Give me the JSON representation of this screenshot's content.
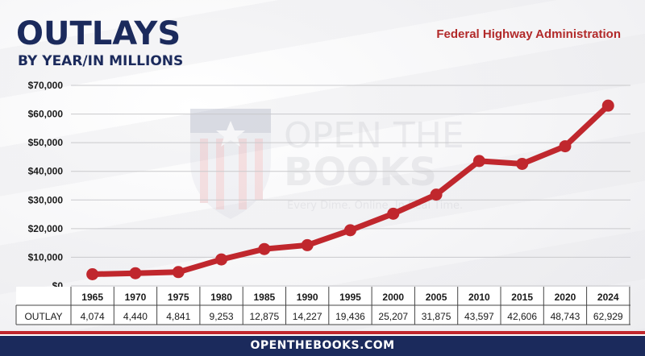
{
  "header": {
    "title": "OUTLAYS",
    "subtitle": "BY YEAR/IN MILLIONS",
    "agency": "Federal Highway Administration"
  },
  "watermark": {
    "line1": "OPEN THE",
    "line2": "BOOKS",
    "tagline": "Every Dime. Online. In Real Time."
  },
  "footer": {
    "url": "OPENTHEBOOKS.COM"
  },
  "colors": {
    "line": "#c0272d",
    "navy": "#1b2a5c",
    "grid": "#c9c9cc"
  },
  "table": {
    "row_label": "OUTLAY",
    "cells": [
      "4,074",
      "4,440",
      "4,841",
      "9,253",
      "12,875",
      "14,227",
      "19,436",
      "25,207",
      "31,875",
      "43,597",
      "42,606",
      "48,743",
      "62,929"
    ]
  },
  "chart_data": {
    "type": "line",
    "title": "OUTLAYS",
    "subtitle": "BY YEAR/IN MILLIONS",
    "categories": [
      "1965",
      "1970",
      "1975",
      "1980",
      "1985",
      "1990",
      "1995",
      "2000",
      "2005",
      "2010",
      "2015",
      "2020",
      "2024"
    ],
    "series": [
      {
        "name": "OUTLAY",
        "values": [
          4074,
          4440,
          4841,
          9253,
          12875,
          14227,
          19436,
          25207,
          31875,
          43597,
          42606,
          48743,
          62929
        ]
      }
    ],
    "ylim": [
      0,
      70000
    ],
    "yticks": [
      0,
      10000,
      20000,
      30000,
      40000,
      50000,
      60000,
      70000
    ],
    "ytick_labels": [
      "$0",
      "$10,000",
      "$20,000",
      "$30,000",
      "$40,000",
      "$50,000",
      "$60,000",
      "$70,000"
    ],
    "grid": true,
    "legend": "none"
  }
}
